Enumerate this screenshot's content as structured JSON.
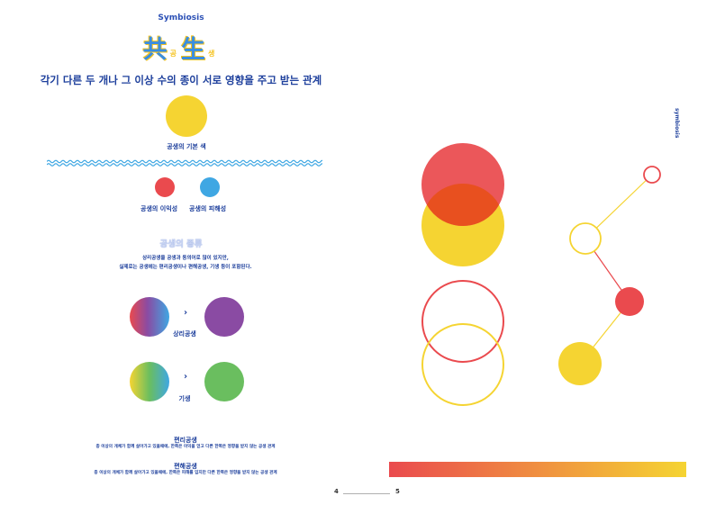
{
  "left_page": {
    "eyebrow": "Symbiosis",
    "title": {
      "hanja_1": "共",
      "hangul_1": "공",
      "hanja_2": "生",
      "hangul_2": "생"
    },
    "subtitle": "각기 다른 두 개나 그 이상 수의 종이 서로 영향을 주고 받는 관계",
    "basic_color_label": "공생의 기본 색",
    "benefit_label": "공생의 이익성",
    "harm_label": "공생의 피해성",
    "types_title": "공생의 종류",
    "types_desc_1": "상리공생을 공생과 동의어로 많이 있지만,",
    "types_desc_2": "실제로는 공생에는 편리공생이나 편해공생, 기생 등이 포함된다.",
    "arrow": "›",
    "mutualism_label": "상리공생",
    "parasitism_label": "기생",
    "commensalism_title": "편리공생",
    "commensalism_desc": "종 이상의 개체가 함께 살아가고 있을때에, 한쪽은 이익을 얻고 다른 한쪽은 영향을 받지 않는 공생 관계",
    "amensalism_title": "편해공생",
    "amensalism_desc": "종 이상의 개체가 함께 살아가고 있을때에, 한쪽은 피해를 입지만 다른 한쪽은 영향을 받지 않는 공생 관계",
    "page_number": "4"
  },
  "right_page": {
    "vertical_text": "symbiosis",
    "page_number": "5"
  },
  "colors": {
    "yellow": "#f5d432",
    "red": "#ea4a4e",
    "blue": "#3fa7e3",
    "purple": "#8a4ba3",
    "green": "#6abe5f",
    "navy": "#1d3f9c"
  }
}
